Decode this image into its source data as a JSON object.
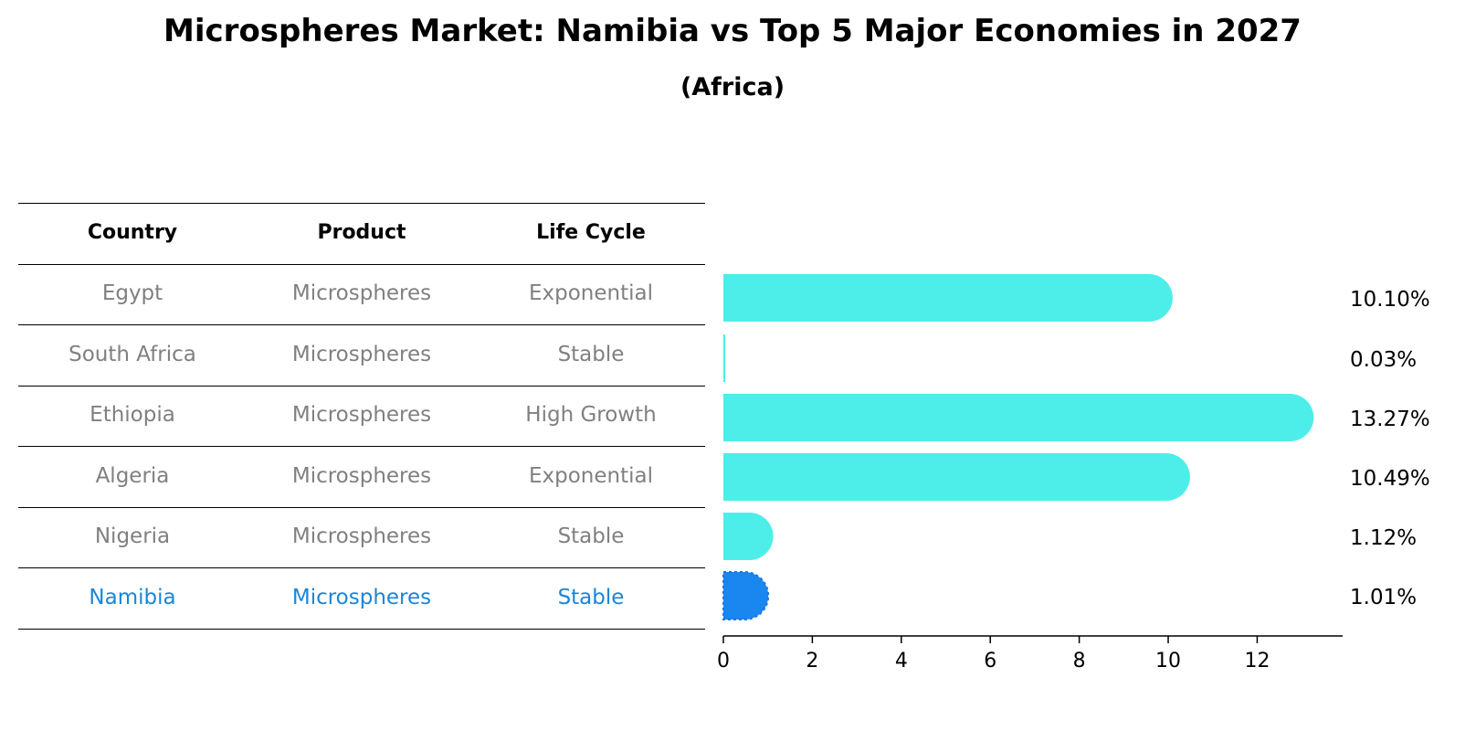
{
  "title": "Microspheres Market: Namibia vs Top 5 Major Economies in 2027",
  "subtitle": "(Africa)",
  "table": {
    "headers": [
      "Country",
      "Product",
      "Life Cycle"
    ],
    "rows": [
      {
        "country": "Egypt",
        "product": "Microspheres",
        "life_cycle": "Exponential"
      },
      {
        "country": "South Africa",
        "product": "Microspheres",
        "life_cycle": "Stable"
      },
      {
        "country": "Ethiopia",
        "product": "Microspheres",
        "life_cycle": "High Growth"
      },
      {
        "country": "Algeria",
        "product": "Microspheres",
        "life_cycle": "Exponential"
      },
      {
        "country": "Nigeria",
        "product": "Microspheres",
        "life_cycle": "Stable"
      },
      {
        "country": "Namibia",
        "product": "Microspheres",
        "life_cycle": "Stable"
      }
    ]
  },
  "chart_data": {
    "type": "bar",
    "orientation": "horizontal",
    "categories": [
      "Egypt",
      "South Africa",
      "Ethiopia",
      "Algeria",
      "Nigeria",
      "Namibia"
    ],
    "values": [
      10.1,
      0.03,
      13.27,
      10.49,
      1.12,
      1.01
    ],
    "value_labels": [
      "10.10%",
      "0.03%",
      "13.27%",
      "10.49%",
      "1.12%",
      "1.01%"
    ],
    "highlight": "Namibia",
    "xlim": [
      0,
      13.9
    ],
    "xticks": [
      0,
      2,
      4,
      6,
      8,
      10,
      12
    ],
    "xlabel": "",
    "ylabel": "",
    "colors": {
      "default": "#4deeea",
      "highlight": "#1a86f0"
    }
  },
  "colors": {
    "text_muted": "#808080",
    "highlight_text": "#1a86d8"
  }
}
